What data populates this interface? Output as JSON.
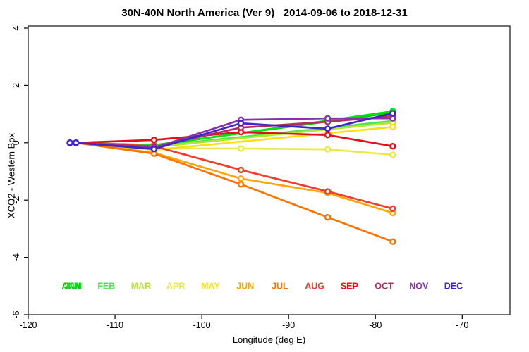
{
  "title": "30N-40N North America (Ver 9)   2014-09-06 to 2018-12-31",
  "chart_data": {
    "type": "line",
    "title": "30N-40N North America (Ver 9)   2014-09-06 to 2018-12-31",
    "xlabel": "Longitude (deg E)",
    "ylabel": "XCO2 - Western Box",
    "grid": false,
    "legend_position": "inside-bottom",
    "xaxis": {
      "label": "Longitude (deg E)",
      "min": -120,
      "max": -64.5,
      "ticks": [
        -120,
        -110,
        -100,
        -90,
        -80,
        -70
      ]
    },
    "yaxis": {
      "label": "XCO2 - Western Box",
      "min": -6,
      "max": 4,
      "ticks": [
        -6,
        -4,
        -2,
        0,
        2,
        4
      ]
    },
    "x": [
      -115.2,
      -114.5,
      -105.5,
      -95.5,
      -85.5,
      -78
    ],
    "series": [
      {
        "name": "ANN",
        "color": "#00C805",
        "values": [
          0,
          0,
          -0.08,
          null,
          null,
          1.05
        ]
      },
      {
        "name": "JAN",
        "color": "#00E010",
        "values": [
          0,
          0,
          -0.1,
          null,
          null,
          1.1
        ]
      },
      {
        "name": "FEB",
        "color": "#4CE64C",
        "values": [
          0,
          0,
          -0.12,
          null,
          null,
          0.76
        ]
      },
      {
        "name": "MAR",
        "color": "#B4E632",
        "values": [
          0,
          0,
          -0.15,
          null,
          null,
          0.7
        ]
      },
      {
        "name": "APR",
        "color": "#EDE84A",
        "values": [
          0,
          0,
          -0.2,
          -0.2,
          -0.23,
          -0.42
        ]
      },
      {
        "name": "MAY",
        "color": "#FFE014",
        "values": [
          0,
          0,
          -0.25,
          null,
          null,
          0.55
        ]
      },
      {
        "name": "JUN",
        "color": "#FFA40A",
        "values": [
          0,
          0,
          -0.35,
          -1.25,
          -1.75,
          -2.45
        ]
      },
      {
        "name": "JUL",
        "color": "#FA7405",
        "values": [
          0,
          0,
          -0.38,
          -1.45,
          -2.6,
          -3.45
        ]
      },
      {
        "name": "AUG",
        "color": "#F03C28",
        "values": [
          0,
          0,
          -0.12,
          -0.95,
          -1.7,
          -2.3
        ]
      },
      {
        "name": "SEP",
        "color": "#E60F19",
        "values": [
          0,
          0,
          0.1,
          0.37,
          0.27,
          -0.12
        ]
      },
      {
        "name": "OCT",
        "color": "#B42D5F",
        "values": [
          0,
          0,
          -0.15,
          0.53,
          0.73,
          0.93
        ]
      },
      {
        "name": "NOV",
        "color": "#8732AA",
        "values": [
          0,
          0,
          -0.18,
          0.8,
          0.85,
          0.85
        ]
      },
      {
        "name": "DEC",
        "color": "#3C28C8",
        "values": [
          0,
          0,
          -0.22,
          0.68,
          0.49,
          1.03
        ]
      }
    ],
    "legend": [
      {
        "label": "ANN",
        "color": "#00C805",
        "lon": -115.05
      },
      {
        "label": "JAN",
        "color": "#00E010",
        "lon": -114.85
      },
      {
        "label": "FEB",
        "color": "#4CE64C",
        "lon": -111
      },
      {
        "label": "MAR",
        "color": "#B4E632",
        "lon": -107
      },
      {
        "label": "APR",
        "color": "#EDE84A",
        "lon": -103
      },
      {
        "label": "MAY",
        "color": "#FFE014",
        "lon": -99
      },
      {
        "label": "JUN",
        "color": "#FFA40A",
        "lon": -95
      },
      {
        "label": "JUL",
        "color": "#FA7405",
        "lon": -91
      },
      {
        "label": "AUG",
        "color": "#F03C28",
        "lon": -87
      },
      {
        "label": "SEP",
        "color": "#E60F19",
        "lon": -83
      },
      {
        "label": "OCT",
        "color": "#B42D5F",
        "lon": -79
      },
      {
        "label": "NOV",
        "color": "#8732AA",
        "lon": -75
      },
      {
        "label": "DEC",
        "color": "#3C28C8",
        "lon": -71
      }
    ],
    "legend_y": -5.1
  }
}
